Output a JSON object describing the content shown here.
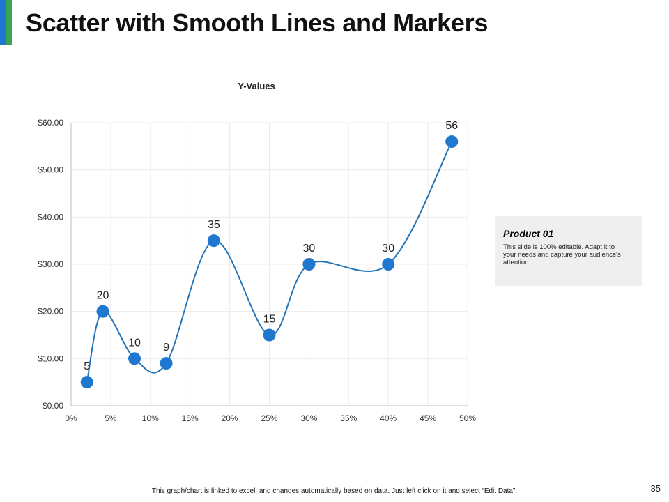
{
  "slide": {
    "title": "Scatter with Smooth Lines and Markers",
    "page_number": "35",
    "footnote": "This graph/chart is linked to excel, and changes automatically based on data. Just left click on it and select “Edit Data”."
  },
  "info_box": {
    "title": "Product 01",
    "text": "This slide is 100% editable. Adapt it to your needs and capture your audience's attention."
  },
  "colors": {
    "accent_blue": "#1f77d0",
    "accent_green": "#3aa655",
    "series": "#1f77d0",
    "line": "#2274b9",
    "grid": "#ececec",
    "axis": "#bfbfbf"
  },
  "chart_data": {
    "type": "scatter",
    "title": "Y-Values",
    "smooth_lines": true,
    "markers": true,
    "x": [
      2,
      4,
      8,
      12,
      18,
      25,
      30,
      40,
      48
    ],
    "y": [
      5,
      20,
      10,
      9,
      35,
      15,
      30,
      30,
      56
    ],
    "data_labels": [
      "5",
      "20",
      "10",
      "9",
      "35",
      "15",
      "30",
      "30",
      "56"
    ],
    "xlim": [
      0,
      50
    ],
    "ylim": [
      0,
      60
    ],
    "x_ticks": [
      0,
      5,
      10,
      15,
      20,
      25,
      30,
      35,
      40,
      45,
      50
    ],
    "x_tick_labels": [
      "0%",
      "5%",
      "10%",
      "15%",
      "20%",
      "25%",
      "30%",
      "35%",
      "40%",
      "45%",
      "50%"
    ],
    "y_ticks": [
      0,
      10,
      20,
      30,
      40,
      50,
      60
    ],
    "y_tick_labels": [
      "$0.00",
      "$10.00",
      "$20.00",
      "$30.00",
      "$40.00",
      "$50.00",
      "$60.00"
    ],
    "grid": true,
    "legend": "none"
  }
}
